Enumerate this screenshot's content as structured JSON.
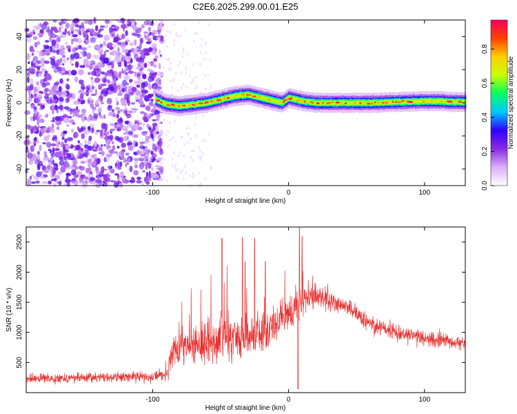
{
  "title": "C2E6.2025.299.00.01.E25",
  "chart_data": [
    {
      "type": "heatmap",
      "xlabel": "Height of straight line (km)",
      "ylabel": "Frequency (Hz)",
      "xlim": [
        -193,
        130
      ],
      "ylim": [
        -50,
        50
      ],
      "xticks": [
        {
          "value": -100,
          "label": "-100"
        },
        {
          "value": 0,
          "label": "0"
        },
        {
          "value": 100,
          "label": "100"
        }
      ],
      "yticks": [
        {
          "value": 40,
          "label": "40"
        },
        {
          "value": 20,
          "label": "20"
        },
        {
          "value": 0,
          "label": "0"
        },
        {
          "value": -20,
          "label": "-20"
        },
        {
          "value": -40,
          "label": "-40"
        }
      ],
      "noise_region_x": [
        -193,
        -97
      ],
      "ridge": {
        "x": [
          -98,
          -90,
          -80,
          -70,
          -60,
          -50,
          -40,
          -30,
          -20,
          -10,
          -5,
          0,
          10,
          20,
          40,
          60,
          80,
          100,
          110,
          120,
          130
        ],
        "freq": [
          2,
          -1,
          -2,
          -1,
          0,
          2,
          4,
          5,
          3,
          1,
          0,
          3,
          1,
          0,
          0,
          0,
          0.5,
          1,
          1,
          0.5,
          0.5
        ]
      },
      "colorbar": {
        "label": "Normalized spectral amplitude",
        "range": [
          0,
          0.97
        ],
        "ticks": [
          {
            "value": 0.0,
            "label": "0.0"
          },
          {
            "value": 0.2,
            "label": "0.2"
          },
          {
            "value": 0.4,
            "label": "0.4"
          },
          {
            "value": 0.6,
            "label": "0.6"
          },
          {
            "value": 0.8,
            "label": "0.8"
          }
        ],
        "colors": [
          "#ffffff",
          "#d8b0f8",
          "#8a2be2",
          "#3000ff",
          "#00c8ff",
          "#00ff60",
          "#c8ff00",
          "#ffd000",
          "#ff4000",
          "#ff0060"
        ]
      }
    },
    {
      "type": "line",
      "xlabel": "Height of straight line (km)",
      "ylabel": "SNR (10 * v/v)",
      "xlim": [
        -193,
        130
      ],
      "ylim": [
        0,
        2750
      ],
      "xticks": [
        {
          "value": -100,
          "label": "-100"
        },
        {
          "value": 0,
          "label": "0"
        },
        {
          "value": 100,
          "label": "100"
        }
      ],
      "yticks": [
        {
          "value": 500,
          "label": "500"
        },
        {
          "value": 1000,
          "label": "1000"
        },
        {
          "value": 1500,
          "label": "1500"
        },
        {
          "value": 2000,
          "label": "2000"
        },
        {
          "value": 2500,
          "label": "2500"
        }
      ],
      "series_color": "#e83030",
      "envelope": {
        "x": [
          -193,
          -150,
          -100,
          -90,
          -85,
          -70,
          -50,
          -30,
          -15,
          0,
          10,
          20,
          40,
          50,
          60,
          80,
          100,
          120,
          130
        ],
        "mean": [
          230,
          250,
          270,
          300,
          650,
          800,
          900,
          950,
          1050,
          1300,
          1550,
          1600,
          1450,
          1300,
          1150,
          1000,
          900,
          850,
          820
        ],
        "spread": [
          90,
          100,
          110,
          120,
          350,
          450,
          500,
          450,
          400,
          350,
          300,
          250,
          200,
          180,
          180,
          170,
          160,
          160,
          160
        ]
      },
      "spikes": [
        {
          "x": -49,
          "y": 2560
        },
        {
          "x": -34,
          "y": 2580
        },
        {
          "x": -32,
          "y": 2180
        },
        {
          "x": -25,
          "y": 2560
        },
        {
          "x": -17,
          "y": 2180
        },
        {
          "x": 8,
          "y": 2750
        },
        {
          "x": 10,
          "y": 2600
        },
        {
          "x": 7,
          "y": 60
        }
      ]
    }
  ]
}
